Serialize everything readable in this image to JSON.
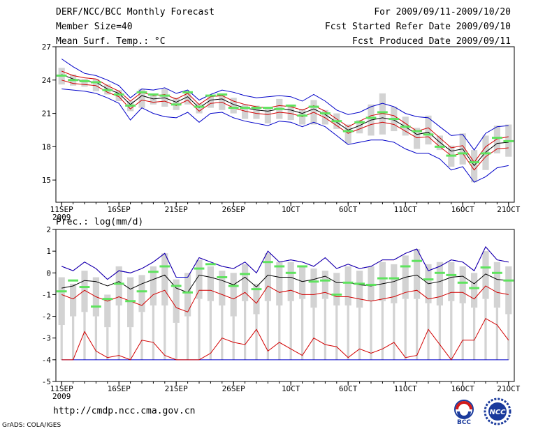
{
  "header": {
    "title": "DERF/NCC/BCC Monthly Forecast",
    "member_size": "Member Size=40",
    "variable": "Mean Surf. Temp.: °C",
    "period": "For 2009/09/11-2009/10/20",
    "started": "Fcst Started Refer Date 2009/09/10",
    "produced": "Fcst Produced Date 2009/09/11"
  },
  "footer": {
    "url": "http://cmdp.ncc.cma.gov.cn",
    "credit": "GrADS: COLA/IGES",
    "logo_bcc": "BCC",
    "logo_ncc": "NCC"
  },
  "colors": {
    "box": "#d3d3d3",
    "bar": "#5ee35e",
    "mean": "#000000",
    "spread": "#d20000",
    "envelope": "#0000c8"
  },
  "chart_data": [
    {
      "type": "box",
      "title": "Mean Surf. Temp.: °C",
      "ylim": [
        13,
        27
      ],
      "yticks": [
        15,
        18,
        21,
        24,
        27
      ],
      "xlim": [
        0.5,
        40.5
      ],
      "xticks": [
        {
          "day": 1,
          "label": "11SEP",
          "sub": "2009"
        },
        {
          "day": 6,
          "label": "16SEP"
        },
        {
          "day": 11,
          "label": "21SEP"
        },
        {
          "day": 16,
          "label": "26SEP"
        },
        {
          "day": 21,
          "label": "1OCT"
        },
        {
          "day": 26,
          "label": "6OCT"
        },
        {
          "day": 31,
          "label": "11OCT"
        },
        {
          "day": 36,
          "label": "16OCT"
        },
        {
          "day": 40,
          "label": "21OCT"
        }
      ],
      "mean": [
        24.5,
        24.1,
        23.9,
        23.8,
        23.2,
        22.8,
        21.8,
        22.6,
        22.3,
        22.4,
        22.0,
        22.5,
        21.5,
        22.2,
        22.3,
        21.8,
        21.5,
        21.3,
        21.2,
        21.4,
        21.3,
        21.0,
        21.4,
        20.9,
        20.2,
        19.5,
        19.9,
        20.4,
        20.6,
        20.4,
        19.8,
        19.1,
        19.3,
        18.4,
        17.6,
        17.8,
        16.3,
        17.5,
        18.3,
        18.4
      ],
      "upper": [
        24.8,
        24.4,
        24.2,
        24.1,
        23.5,
        23.0,
        22.1,
        22.9,
        22.6,
        22.7,
        22.3,
        22.8,
        21.8,
        22.5,
        22.6,
        22.1,
        21.8,
        21.6,
        21.5,
        21.7,
        21.6,
        21.3,
        21.7,
        21.2,
        20.5,
        19.8,
        20.3,
        20.8,
        21.0,
        20.8,
        20.1,
        19.4,
        19.7,
        18.8,
        17.9,
        18.1,
        16.6,
        18.0,
        18.7,
        18.9
      ],
      "lower": [
        24.0,
        23.7,
        23.6,
        23.5,
        22.9,
        22.5,
        21.4,
        22.2,
        22.0,
        22.1,
        21.7,
        22.2,
        21.2,
        21.9,
        22.0,
        21.5,
        21.2,
        21.0,
        20.9,
        21.1,
        21.0,
        20.7,
        21.1,
        20.6,
        19.9,
        19.2,
        19.6,
        20.0,
        20.2,
        20.0,
        19.4,
        18.8,
        18.9,
        18.0,
        17.2,
        17.4,
        15.9,
        17.1,
        17.8,
        17.9
      ],
      "max": [
        25.9,
        25.2,
        24.6,
        24.4,
        24.0,
        23.5,
        22.4,
        23.2,
        23.1,
        23.3,
        22.8,
        23.1,
        22.2,
        22.7,
        23.1,
        22.9,
        22.6,
        22.4,
        22.5,
        22.6,
        22.5,
        22.1,
        22.7,
        22.1,
        21.3,
        20.9,
        21.1,
        21.6,
        21.9,
        21.6,
        21.0,
        20.7,
        20.6,
        19.8,
        19.0,
        19.1,
        17.7,
        19.2,
        19.8,
        19.9
      ],
      "min": [
        23.2,
        23.1,
        23.0,
        22.8,
        22.4,
        21.9,
        20.4,
        21.5,
        21.0,
        20.7,
        20.6,
        21.1,
        20.2,
        21.0,
        21.1,
        20.6,
        20.3,
        20.1,
        19.9,
        20.3,
        20.2,
        19.8,
        20.2,
        19.8,
        19.0,
        18.2,
        18.4,
        18.6,
        18.6,
        18.4,
        17.8,
        17.4,
        17.4,
        16.9,
        15.9,
        16.2,
        14.8,
        15.3,
        16.1,
        16.3
      ],
      "q75": [
        25.1,
        24.5,
        24.1,
        24.1,
        23.6,
        23.1,
        22.1,
        23.2,
        22.8,
        23.2,
        22.4,
        22.9,
        21.9,
        22.5,
        22.8,
        22.4,
        21.8,
        21.7,
        21.4,
        22.3,
        21.8,
        21.4,
        22.2,
        21.3,
        21.0,
        20.0,
        20.4,
        21.8,
        22.8,
        21.6,
        20.7,
        19.7,
        20.8,
        19.0,
        18.1,
        19.2,
        17.7,
        19.0,
        19.9,
        20.0
      ],
      "q25": [
        23.6,
        23.5,
        23.4,
        23.0,
        22.7,
        22.1,
        21.2,
        21.5,
        21.8,
        21.6,
        21.3,
        21.8,
        21.0,
        21.5,
        21.3,
        21.0,
        20.5,
        20.5,
        20.1,
        20.5,
        20.4,
        20.0,
        20.0,
        20.0,
        19.6,
        18.3,
        19.2,
        19.0,
        19.1,
        19.4,
        19.0,
        17.8,
        18.2,
        17.7,
        16.2,
        16.4,
        14.8,
        15.9,
        17.4,
        17.1
      ],
      "bars": [
        24.4,
        24.0,
        23.9,
        23.8,
        23.1,
        22.7,
        21.7,
        22.9,
        22.7,
        22.6,
        21.8,
        22.9,
        21.6,
        22.6,
        22.7,
        21.5,
        21.5,
        21.5,
        21.5,
        21.4,
        21.7,
        20.8,
        21.6,
        21.0,
        20.3,
        19.4,
        20.2,
        20.6,
        21.1,
        20.5,
        19.8,
        19.4,
        19.1,
        18.0,
        17.2,
        17.4,
        16.6,
        17.4,
        18.8,
        18.5
      ]
    },
    {
      "type": "box",
      "title": "Prec.: log(mm/d)",
      "ylim": [
        -5,
        2
      ],
      "yticks": [
        -5,
        -4,
        -3,
        -2,
        -1,
        0,
        1,
        2
      ],
      "xlim": [
        0.5,
        40.5
      ],
      "xticks": [
        {
          "day": 1,
          "label": "11SEP",
          "sub": "2009"
        },
        {
          "day": 6,
          "label": "16SEP"
        },
        {
          "day": 11,
          "label": "21SEP"
        },
        {
          "day": 16,
          "label": "26SEP"
        },
        {
          "day": 21,
          "label": "1OCT"
        },
        {
          "day": 26,
          "label": "6OCT"
        },
        {
          "day": 31,
          "label": "11OCT"
        },
        {
          "day": 36,
          "label": "16OCT"
        },
        {
          "day": 40,
          "label": "21OCT"
        }
      ],
      "mean": [
        -0.7,
        -0.6,
        -0.35,
        -0.4,
        -0.6,
        -0.4,
        -0.75,
        -0.5,
        -0.3,
        -0.1,
        -0.7,
        -0.9,
        -0.1,
        -0.2,
        -0.35,
        -0.55,
        -0.2,
        -0.65,
        -0.1,
        -0.2,
        -0.2,
        -0.4,
        -0.3,
        -0.15,
        -0.45,
        -0.45,
        -0.55,
        -0.6,
        -0.5,
        -0.4,
        -0.2,
        -0.1,
        -0.5,
        -0.4,
        -0.2,
        -0.15,
        -0.5,
        -0.05,
        -0.3,
        -0.35
      ],
      "upper": [
        0.3,
        0.1,
        0.5,
        0.2,
        -0.3,
        0.1,
        0.0,
        0.2,
        0.5,
        0.9,
        -0.2,
        -0.2,
        0.7,
        0.5,
        0.3,
        0.2,
        0.5,
        0.0,
        1.0,
        0.5,
        0.6,
        0.5,
        0.3,
        0.7,
        0.2,
        0.4,
        0.2,
        0.3,
        0.6,
        0.6,
        0.9,
        1.1,
        0.1,
        0.3,
        0.6,
        0.5,
        0.1,
        1.2,
        0.6,
        0.5
      ],
      "lower": [
        -1.0,
        -1.2,
        -0.8,
        -1.1,
        -1.3,
        -1.1,
        -1.3,
        -1.5,
        -1.0,
        -0.8,
        -1.6,
        -1.8,
        -0.8,
        -0.8,
        -1.0,
        -1.2,
        -0.9,
        -1.4,
        -0.6,
        -0.9,
        -0.8,
        -1.0,
        -1.0,
        -0.9,
        -1.1,
        -1.1,
        -1.2,
        -1.3,
        -1.2,
        -1.1,
        -0.9,
        -0.8,
        -1.2,
        -1.1,
        -0.9,
        -0.9,
        -1.2,
        -0.6,
        -0.9,
        -1.0
      ],
      "min": [
        -4.0,
        -4.0,
        -2.7,
        -3.6,
        -3.9,
        -3.8,
        -4.0,
        -3.1,
        -3.2,
        -3.8,
        -4.0,
        -4.0,
        -4.0,
        -3.7,
        -3.0,
        -3.2,
        -3.3,
        -2.6,
        -3.6,
        -3.2,
        -3.5,
        -3.8,
        -3.0,
        -3.3,
        -3.4,
        -3.9,
        -3.5,
        -3.7,
        -3.5,
        -3.2,
        -3.9,
        -3.8,
        -2.6,
        -3.3,
        -4.0,
        -3.1,
        -3.1,
        -2.1,
        -2.4,
        -3.1
      ],
      "floor": -4.0,
      "q75": [
        -0.2,
        -0.5,
        0.1,
        -0.2,
        -1.0,
        0.3,
        -0.2,
        -0.1,
        0.3,
        0.9,
        -0.3,
        0.0,
        0.6,
        0.3,
        0.1,
        0.0,
        0.4,
        -0.5,
        0.9,
        0.5,
        0.5,
        0.3,
        0.2,
        0.1,
        0.0,
        0.3,
        0.1,
        0.3,
        0.5,
        0.4,
        0.8,
        1.1,
        0.4,
        0.5,
        0.5,
        0.3,
        0.0,
        1.0,
        0.5,
        0.3
      ],
      "q25": [
        -2.4,
        -2.0,
        -1.8,
        -2.0,
        -2.5,
        -1.5,
        -2.5,
        -1.8,
        -1.5,
        -1.5,
        -2.3,
        -2.0,
        -1.2,
        -1.3,
        -1.5,
        -2.0,
        -1.3,
        -1.9,
        -1.3,
        -1.5,
        -1.3,
        -1.2,
        -1.6,
        -1.2,
        -1.5,
        -1.5,
        -1.6,
        -1.3,
        -1.3,
        -1.4,
        -1.2,
        -1.2,
        -1.4,
        -1.5,
        -1.3,
        -1.4,
        -1.6,
        -1.2,
        -1.6,
        -1.9
      ],
      "bars": [
        -0.85,
        -0.35,
        -0.65,
        -1.55,
        -1.2,
        -0.5,
        -1.3,
        -0.85,
        0.05,
        0.3,
        -0.6,
        -0.9,
        0.2,
        0.4,
        -0.2,
        -0.6,
        -0.05,
        -0.75,
        0.5,
        0.3,
        0.0,
        0.3,
        -0.4,
        -0.35,
        -1.0,
        -0.45,
        -0.5,
        -0.55,
        -0.25,
        -0.25,
        0.3,
        0.55,
        -0.3,
        0.0,
        -0.1,
        -0.45,
        -0.7,
        0.25,
        0.0,
        -0.35
      ]
    }
  ]
}
